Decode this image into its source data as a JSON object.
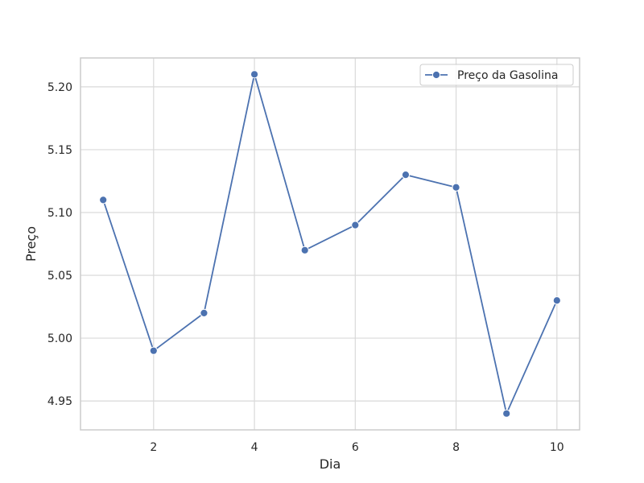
{
  "chart_data": {
    "type": "line",
    "title": "",
    "xlabel": "Dia",
    "ylabel": "Preço",
    "x": [
      1,
      2,
      3,
      4,
      5,
      6,
      7,
      8,
      9,
      10
    ],
    "series": [
      {
        "name": "Preço da Gasolina",
        "values": [
          5.11,
          4.99,
          5.02,
          5.21,
          5.07,
          5.09,
          5.13,
          5.12,
          4.94,
          5.03
        ],
        "color": "#4c72b0",
        "marker": "circle"
      }
    ],
    "xlim": [
      0.55,
      10.45
    ],
    "ylim": [
      4.927,
      5.223
    ],
    "xticks": [
      2,
      4,
      6,
      8,
      10
    ],
    "xtick_labels": [
      "2",
      "4",
      "6",
      "8",
      "10"
    ],
    "yticks": [
      4.95,
      5.0,
      5.05,
      5.1,
      5.15,
      5.2
    ],
    "ytick_labels": [
      "4.95",
      "5.00",
      "5.05",
      "5.10",
      "5.15",
      "5.20"
    ],
    "grid": true,
    "legend_position": "top-right",
    "colors": {
      "grid": "#d9d9d9",
      "spine": "#cccccc",
      "text": "#262626"
    }
  }
}
